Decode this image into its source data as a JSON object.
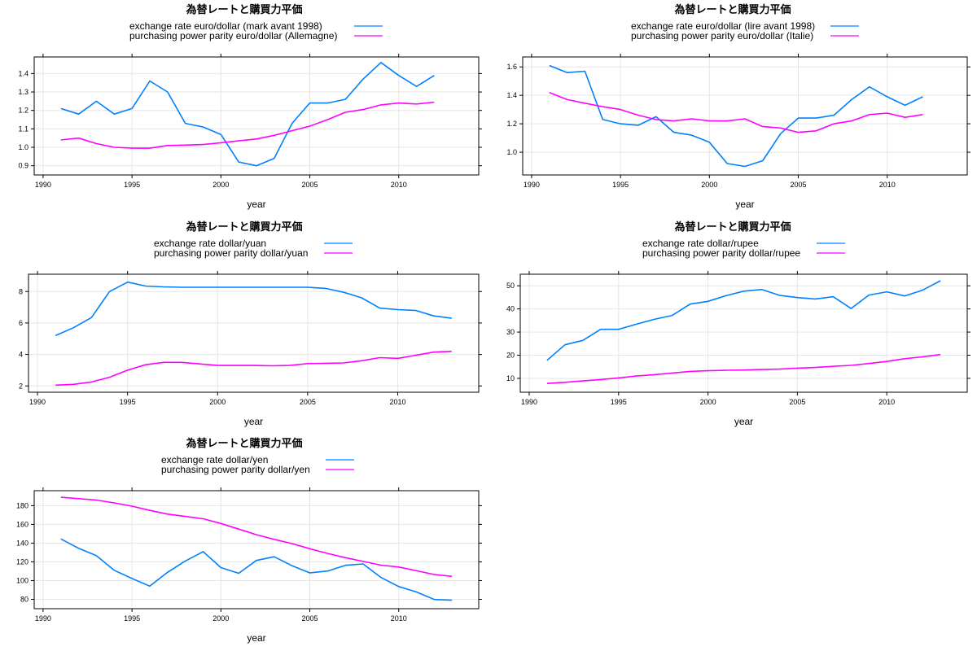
{
  "colors": {
    "exchange": "#0080ff",
    "ppp": "#ff00ff",
    "grid": "#e6e6e6"
  },
  "chart_data": [
    {
      "type": "line",
      "title": "為替レートと購買力平価",
      "xlabel": "year",
      "ylabel": "",
      "xlim": [
        1989.5,
        2014.5
      ],
      "ylim": [
        0.85,
        1.49
      ],
      "xticks": [
        1990,
        1995,
        2000,
        2005,
        2010
      ],
      "yticks": [
        0.9,
        1.0,
        1.1,
        1.2,
        1.3,
        1.4
      ],
      "ytick_labels": [
        "0.9",
        "1.0",
        "1.1",
        "1.2",
        "1.3",
        "1.4"
      ],
      "grid": true,
      "legend_position": "top",
      "x": [
        1991,
        1992,
        1993,
        1994,
        1995,
        1996,
        1997,
        1998,
        1999,
        2000,
        2001,
        2002,
        2003,
        2004,
        2005,
        2006,
        2007,
        2008,
        2009,
        2010,
        2011,
        2012
      ],
      "series": [
        {
          "name": "exchange rate euro/dollar (mark avant 1998)",
          "color": "#0080ff",
          "values": [
            1.21,
            1.18,
            1.25,
            1.18,
            1.21,
            1.36,
            1.3,
            1.13,
            1.11,
            1.07,
            0.92,
            0.9,
            0.94,
            1.13,
            1.24,
            1.24,
            1.26,
            1.37,
            1.46,
            1.39,
            1.33,
            1.39
          ]
        },
        {
          "name": "purchasing power parity euro/dollar (Allemagne)",
          "color": "#ff00ff",
          "values": [
            1.04,
            1.05,
            1.02,
            1.0,
            0.995,
            0.995,
            1.01,
            1.012,
            1.015,
            1.025,
            1.035,
            1.045,
            1.065,
            1.09,
            1.115,
            1.15,
            1.19,
            1.205,
            1.23,
            1.24,
            1.235,
            1.245
          ]
        }
      ]
    },
    {
      "type": "line",
      "title": "為替レートと購買力平価",
      "xlabel": "year",
      "ylabel": "",
      "xlim": [
        1989.5,
        2014.5
      ],
      "ylim": [
        0.84,
        1.67
      ],
      "xticks": [
        1990,
        1995,
        2000,
        2005,
        2010
      ],
      "yticks": [
        1.0,
        1.2,
        1.4,
        1.6
      ],
      "ytick_labels": [
        "1.0",
        "1.2",
        "1.4",
        "1.6"
      ],
      "grid": true,
      "legend_position": "top",
      "x": [
        1991,
        1992,
        1993,
        1994,
        1995,
        1996,
        1997,
        1998,
        1999,
        2000,
        2001,
        2002,
        2003,
        2004,
        2005,
        2006,
        2007,
        2008,
        2009,
        2010,
        2011,
        2012
      ],
      "series": [
        {
          "name": "exchange rate euro/dollar (lire avant 1998)",
          "color": "#0080ff",
          "values": [
            1.61,
            1.56,
            1.57,
            1.23,
            1.2,
            1.19,
            1.25,
            1.14,
            1.12,
            1.07,
            0.92,
            0.9,
            0.94,
            1.13,
            1.24,
            1.24,
            1.26,
            1.37,
            1.46,
            1.39,
            1.33,
            1.39
          ]
        },
        {
          "name": "purchasing power parity euro/dollar (Italie)",
          "color": "#ff00ff",
          "values": [
            1.42,
            1.37,
            1.345,
            1.32,
            1.3,
            1.26,
            1.23,
            1.22,
            1.235,
            1.22,
            1.22,
            1.235,
            1.18,
            1.17,
            1.14,
            1.15,
            1.2,
            1.22,
            1.265,
            1.275,
            1.245,
            1.265
          ]
        }
      ]
    },
    {
      "type": "line",
      "title": "為替レートと購買力平価",
      "xlabel": "year",
      "ylabel": "",
      "xlim": [
        1989.5,
        2014.5
      ],
      "ylim": [
        1.6,
        9.1
      ],
      "xticks": [
        1990,
        1995,
        2000,
        2005,
        2010
      ],
      "yticks": [
        2,
        4,
        6,
        8
      ],
      "ytick_labels": [
        "2",
        "4",
        "6",
        "8"
      ],
      "grid": true,
      "legend_position": "top",
      "x": [
        1991,
        1992,
        1993,
        1994,
        1995,
        1996,
        1997,
        1998,
        1999,
        2000,
        2001,
        2002,
        2003,
        2004,
        2005,
        2006,
        2007,
        2008,
        2009,
        2010,
        2011,
        2012,
        2013
      ],
      "series": [
        {
          "name": "exchange rate dollar/yuan",
          "color": "#0080ff",
          "values": [
            5.2,
            5.7,
            6.35,
            8.0,
            8.6,
            8.35,
            8.3,
            8.27,
            8.27,
            8.27,
            8.27,
            8.27,
            8.27,
            8.27,
            8.27,
            8.2,
            7.95,
            7.6,
            6.95,
            6.85,
            6.8,
            6.45,
            6.3
          ]
        },
        {
          "name": "purchasing power parity dollar/yuan",
          "color": "#ff00ff",
          "values": [
            2.05,
            2.1,
            2.25,
            2.55,
            3.0,
            3.35,
            3.5,
            3.5,
            3.4,
            3.3,
            3.3,
            3.3,
            3.28,
            3.3,
            3.42,
            3.44,
            3.46,
            3.6,
            3.8,
            3.75,
            3.95,
            4.15,
            4.2
          ]
        }
      ]
    },
    {
      "type": "line",
      "title": "為替レートと購買力平価",
      "xlabel": "year",
      "ylabel": "",
      "xlim": [
        1989.5,
        2014.5
      ],
      "ylim": [
        4,
        55
      ],
      "xticks": [
        1990,
        1995,
        2000,
        2005,
        2010
      ],
      "yticks": [
        10,
        20,
        30,
        40,
        50
      ],
      "ytick_labels": [
        "10",
        "20",
        "30",
        "40",
        "50"
      ],
      "grid": true,
      "legend_position": "top",
      "x": [
        1991,
        1992,
        1993,
        1994,
        1995,
        1996,
        1997,
        1998,
        1999,
        2000,
        2001,
        2002,
        2003,
        2004,
        2005,
        2006,
        2007,
        2008,
        2009,
        2010,
        2011,
        2012,
        2013
      ],
      "series": [
        {
          "name": "exchange rate dollar/rupee",
          "color": "#0080ff",
          "values": [
            17.8,
            24.5,
            26.4,
            31.2,
            31.2,
            33.4,
            35.5,
            37.2,
            42.1,
            43.3,
            45.7,
            47.7,
            48.4,
            45.9,
            44.9,
            44.3,
            45.3,
            40.2,
            46.0,
            47.4,
            45.6,
            48.1,
            52.2
          ]
        },
        {
          "name": "purchasing power parity dollar/rupee",
          "color": "#ff00ff",
          "values": [
            7.8,
            8.3,
            8.9,
            9.5,
            10.2,
            11.0,
            11.6,
            12.3,
            13.0,
            13.3,
            13.5,
            13.6,
            13.8,
            14.0,
            14.4,
            14.7,
            15.2,
            15.6,
            16.4,
            17.3,
            18.5,
            19.3,
            20.3
          ]
        }
      ]
    },
    {
      "type": "line",
      "title": "為替レートと購買力平価",
      "xlabel": "year",
      "ylabel": "",
      "xlim": [
        1989.5,
        2014.5
      ],
      "ylim": [
        70,
        196
      ],
      "xticks": [
        1990,
        1995,
        2000,
        2005,
        2010
      ],
      "yticks": [
        80,
        100,
        120,
        140,
        160,
        180
      ],
      "ytick_labels": [
        "80",
        "100",
        "120",
        "140",
        "160",
        "180"
      ],
      "grid": true,
      "legend_position": "top",
      "x": [
        1991,
        1992,
        1993,
        1994,
        1995,
        1996,
        1997,
        1998,
        1999,
        2000,
        2001,
        2002,
        2003,
        2004,
        2005,
        2006,
        2007,
        2008,
        2009,
        2010,
        2011,
        2012,
        2013
      ],
      "series": [
        {
          "name": "exchange rate dollar/yen",
          "color": "#0080ff",
          "values": [
            144.5,
            134.5,
            126.6,
            111.0,
            102.2,
            94.1,
            108.8,
            120.9,
            130.9,
            113.9,
            107.8,
            121.5,
            125.4,
            115.9,
            108.2,
            110.2,
            116.3,
            117.8,
            103.4,
            93.6,
            87.8,
            79.8,
            79.0
          ]
        },
        {
          "name": "purchasing power parity dollar/yen",
          "color": "#ff00ff",
          "values": [
            189,
            187.5,
            186,
            183,
            179.5,
            175,
            171,
            168.5,
            166,
            161,
            155,
            149,
            144,
            139.5,
            134,
            129,
            124.5,
            120.5,
            116.5,
            114.5,
            110.5,
            106.5,
            104.5
          ]
        }
      ]
    }
  ]
}
